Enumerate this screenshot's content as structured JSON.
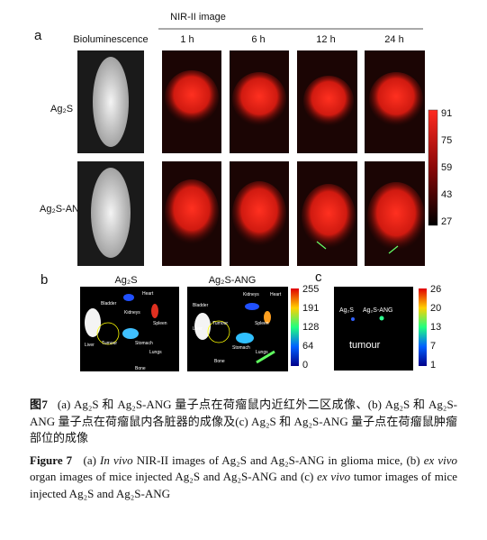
{
  "panel_a": {
    "label": "a",
    "group_title": "NIR-II image",
    "columns": [
      "Bioluminescence",
      "1 h",
      "6 h",
      "12 h",
      "24 h"
    ],
    "rows": [
      "Ag₂S",
      "Ag₂S-ANG"
    ],
    "colorbar_ticks": [
      91,
      75,
      59,
      43,
      27
    ]
  },
  "panel_b": {
    "label": "b",
    "titles": [
      "Ag₂S",
      "Ag₂S-ANG"
    ],
    "organs_left": [
      "Heart",
      "Bladder",
      "Kidneys",
      "Spleen",
      "Liver",
      "Tumour",
      "Stomach",
      "Lungs",
      "Bone"
    ],
    "organs_right": [
      "Heart",
      "Bladder",
      "Kidneys",
      "Spleen",
      "Liver",
      "Tumour",
      "Stomach",
      "Lungs",
      "Bone"
    ],
    "colorbar_ticks": [
      255,
      191,
      128,
      64,
      0
    ]
  },
  "panel_c": {
    "label": "c",
    "samples": [
      "Ag₂S",
      "Ag₂S-ANG"
    ],
    "caption": "tumour",
    "colorbar_ticks": [
      26,
      20,
      13,
      7,
      1
    ]
  },
  "caption": {
    "zh": {
      "label": "图7",
      "text": "(a) Ag₂S 和 Ag₂S-ANG 量子点在荷瘤鼠内近红外二区成像、(b) Ag₂S 和 Ag₂S-ANG 量子点在荷瘤鼠内各脏器的成像及(c) Ag₂S 和 Ag₂S-ANG 量子点在荷瘤鼠肿瘤部位的成像"
    },
    "en": {
      "label": "Figure 7",
      "parts": [
        "(a) ",
        "In vivo",
        " NIR-II images of Ag₂S and Ag₂S-ANG in glioma mice, (b) ",
        "ex vivo",
        " organ images of mice injected Ag₂S and Ag₂S-ANG and (c) ",
        "ex vivo",
        " tumor images of mice injected Ag₂S and Ag₂S-ANG"
      ]
    }
  }
}
